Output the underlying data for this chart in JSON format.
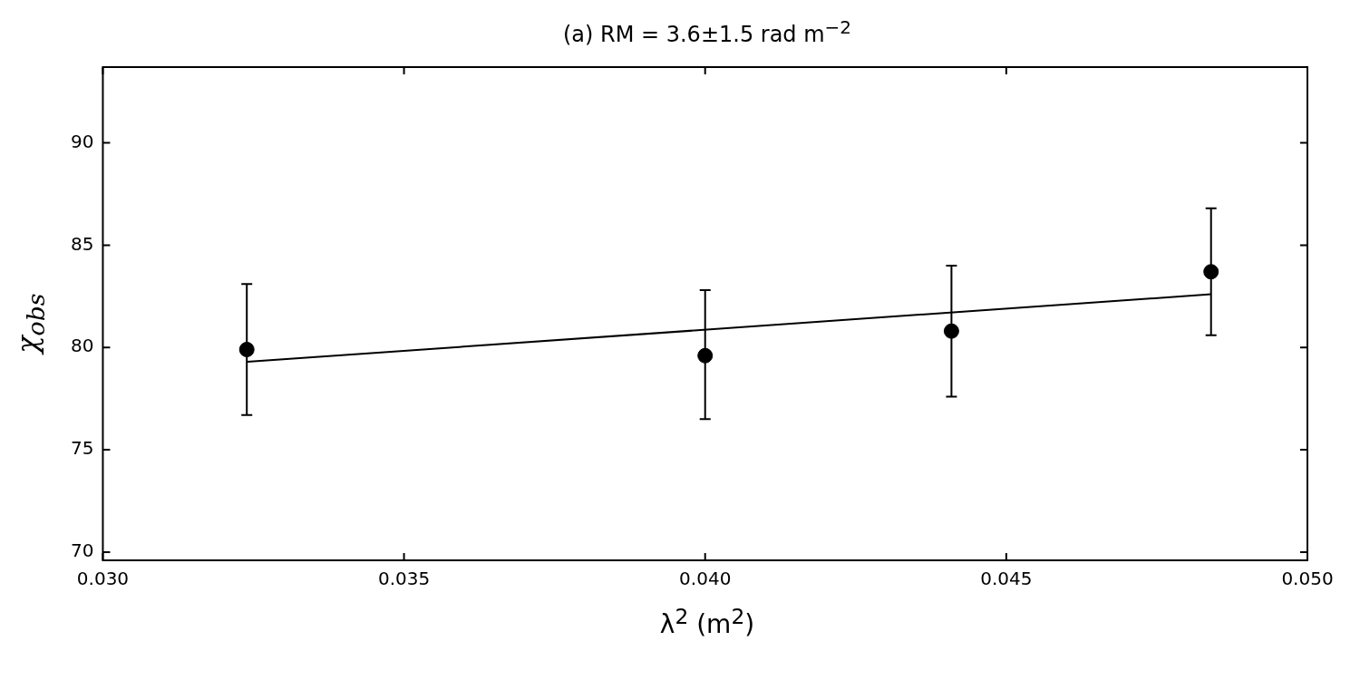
{
  "chart_data": {
    "type": "scatter",
    "title": "(a) RM = 3.6±1.5 rad m$^{−2}$",
    "xlabel": "λ$^{2}$ (m$^{2}$)",
    "ylabel": "χ$_{obs}$",
    "xlim": [
      0.03,
      0.05
    ],
    "xticks": [
      {
        "value": 0.03,
        "label": "0.030"
      },
      {
        "value": 0.035,
        "label": "0.035"
      },
      {
        "value": 0.04,
        "label": "0.040"
      },
      {
        "value": 0.045,
        "label": "0.045"
      },
      {
        "value": 0.05,
        "label": "0.050"
      }
    ],
    "ylim": [
      69.6,
      93.7
    ],
    "yticks": [
      70,
      75,
      80,
      85,
      90
    ],
    "grid": false,
    "legend": false,
    "series": [
      {
        "color": "#000000",
        "marker": "circle",
        "x": [
          0.03239,
          0.04,
          0.04409,
          0.0484
        ],
        "values": [
          79.9,
          79.6,
          80.8,
          83.7
        ],
        "errors": [
          [
            76.7,
            83.1
          ],
          [
            76.5,
            82.8
          ],
          [
            77.6,
            84.0
          ],
          [
            80.6,
            86.8
          ]
        ]
      },
      {
        "type": "line",
        "color": "#000000",
        "marker": "none",
        "line_style": "solid",
        "x": [
          0.0324,
          0.0484
        ],
        "values": [
          79.3,
          82.6
        ]
      }
    ]
  }
}
